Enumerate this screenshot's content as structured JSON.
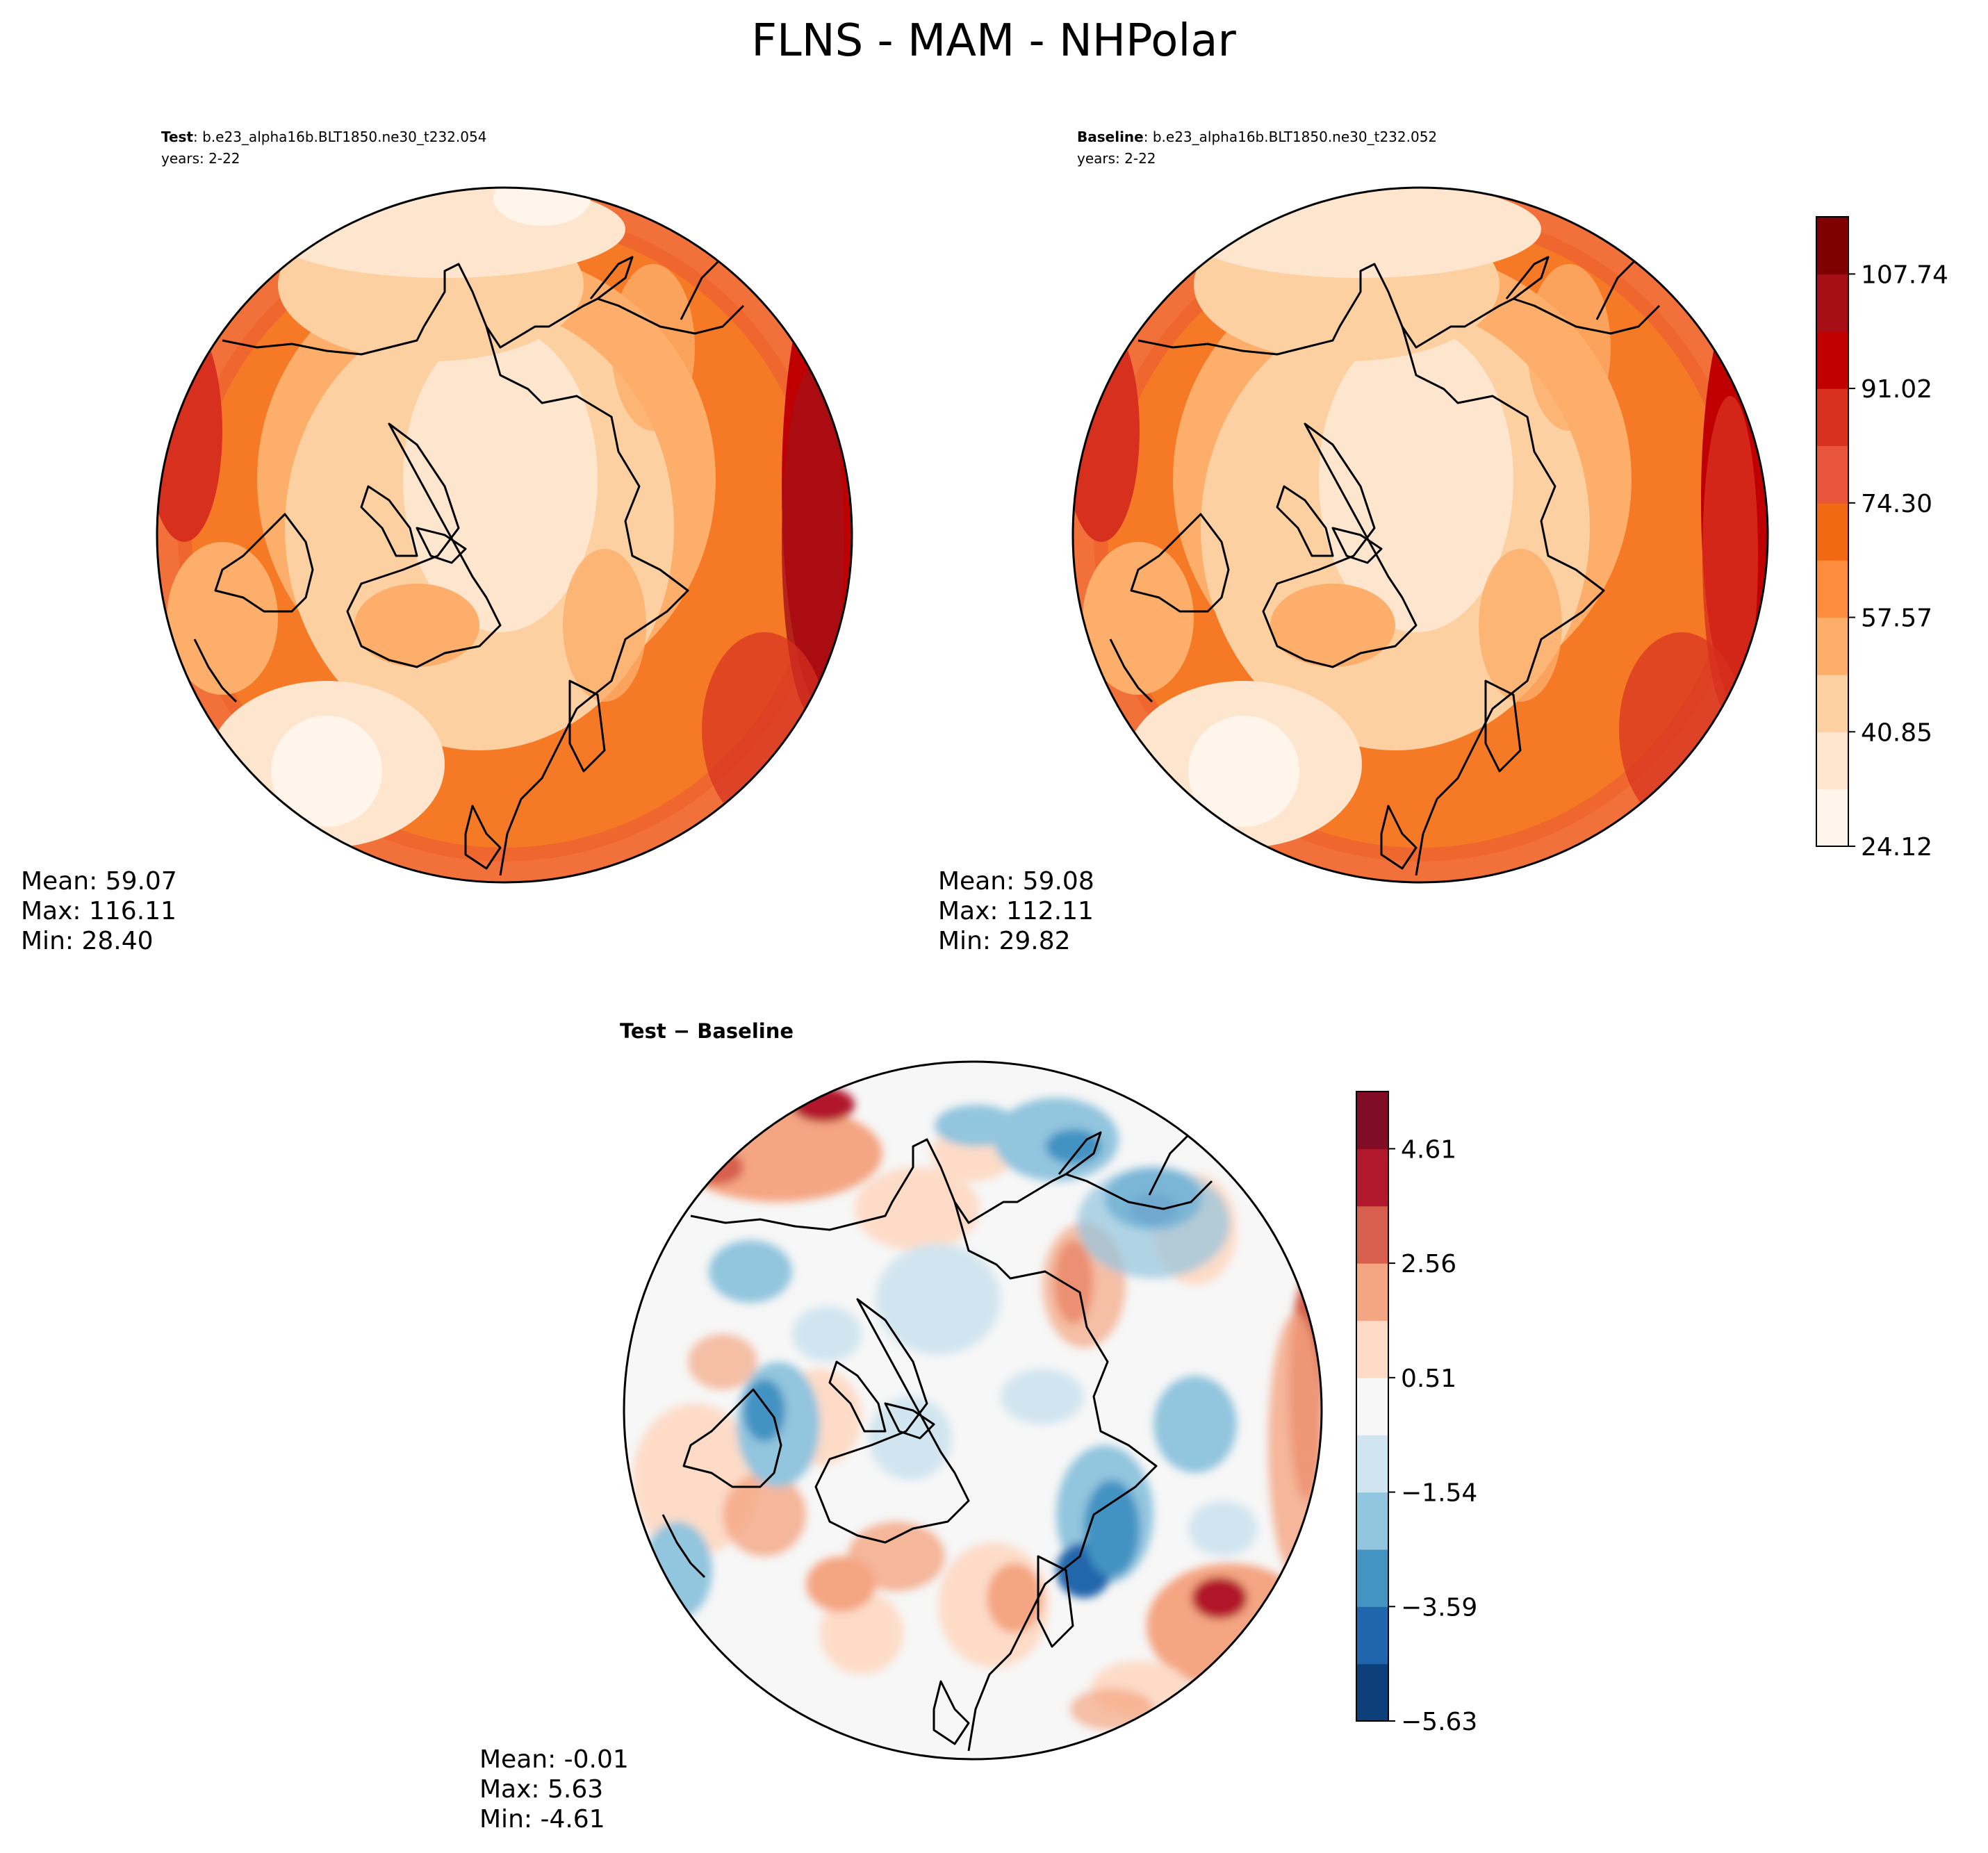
{
  "figure": {
    "title": "FLNS - MAM - NHPolar"
  },
  "chart_data": [
    {
      "type": "heatmap",
      "panel": "test",
      "label_bold": "Test",
      "label_sep": ": ",
      "case_name": "b.e23_alpha16b.BLT1850.ne30_t232.054",
      "years": "years: 2-22",
      "projection": "north-polar-stereographic",
      "stats": {
        "mean": "Mean: 59.07",
        "max": "Max: 116.11",
        "min": "Min: 28.40"
      },
      "field_description": "warm ring at low latitudes (Pacific/Atlantic edge), cool center over Arctic ocean",
      "colorscale": "OrRd",
      "levels": [
        24.12,
        32.48,
        40.85,
        49.21,
        57.57,
        65.93,
        74.3,
        82.66,
        91.02,
        99.38,
        107.74,
        116.11
      ]
    },
    {
      "type": "heatmap",
      "panel": "baseline",
      "label_bold": "Baseline",
      "label_sep": ": ",
      "case_name": "b.e23_alpha16b.BLT1850.ne30_t232.052",
      "years": "years: 2-22",
      "projection": "north-polar-stereographic",
      "stats": {
        "mean": "Mean: 59.08",
        "max": "Max: 112.11",
        "min": "Min: 29.82"
      },
      "colorscale": "OrRd",
      "colorbar_ticks": [
        "24.12",
        "40.85",
        "57.57",
        "74.30",
        "91.02",
        "107.74"
      ]
    },
    {
      "type": "heatmap",
      "panel": "difference",
      "title": "Test − Baseline",
      "projection": "north-polar-stereographic",
      "stats": {
        "mean": "Mean: -0.01",
        "max": "Max:  5.63",
        "min": "Min: -4.61"
      },
      "colorscale": "RdBu_r",
      "levels": [
        -5.63,
        -4.61,
        -3.59,
        -2.56,
        -1.54,
        -0.51,
        0.51,
        1.54,
        2.56,
        3.59,
        4.61,
        5.63
      ],
      "colorbar_ticks": [
        "−5.63",
        "−3.59",
        "−1.54",
        "0.51",
        "2.56",
        "4.61"
      ]
    }
  ],
  "colors": {
    "orrd": [
      "#fff5eb",
      "#fee6ce",
      "#fdd0a2",
      "#fdae6b",
      "#fd8d3c",
      "#f16913",
      "#e8553a",
      "#d7301f",
      "#c00000",
      "#a50f15",
      "#800000"
    ],
    "rdbu": [
      "#0d3f7a",
      "#2166ac",
      "#4393c3",
      "#92c5de",
      "#d1e5f0",
      "#f7f7f7",
      "#fddbc7",
      "#f4a582",
      "#d6604d",
      "#b2182b",
      "#800c26"
    ]
  }
}
